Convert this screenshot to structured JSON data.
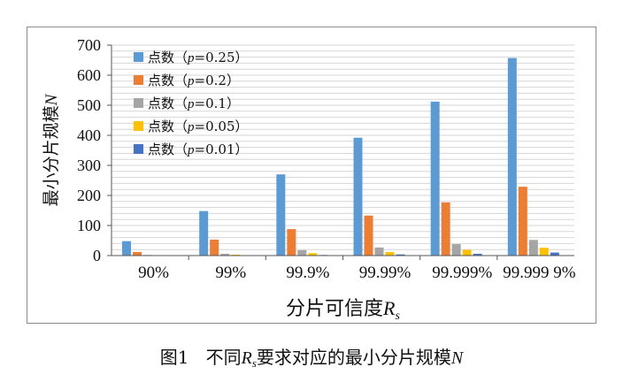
{
  "chart_data": {
    "type": "bar",
    "title": "",
    "xlabel": "分片可信度",
    "xlabel_var": "R",
    "xlabel_sub": "s",
    "ylabel": "最小分片规模",
    "ylabel_var": "N",
    "ylim": [
      0,
      700
    ],
    "yticks": [
      0,
      100,
      200,
      300,
      400,
      500,
      600,
      700
    ],
    "grid": true,
    "legend": "top-left",
    "categories": [
      "90%",
      "99%",
      "99.9%",
      "99.99%",
      "99.999%",
      "99.999 9%"
    ],
    "series": [
      {
        "name": "点数（p=0.25）",
        "prefix": "点数（",
        "var": "p",
        "suffix": "=0.25）",
        "color": "#5b9bd5",
        "values": [
          48,
          148,
          270,
          392,
          512,
          657
        ]
      },
      {
        "name": "点数（p=0.2）",
        "prefix": "点数（",
        "var": "p",
        "suffix": "=0.2）",
        "color": "#ed7d31",
        "values": [
          12,
          53,
          88,
          133,
          177,
          229
        ]
      },
      {
        "name": "点数（p=0.1）",
        "prefix": "点数（",
        "var": "p",
        "suffix": "=0.1）",
        "color": "#a5a5a5",
        "values": [
          2,
          6,
          18,
          27,
          38,
          52
        ]
      },
      {
        "name": "点数（p=0.05）",
        "prefix": "点数（",
        "var": "p",
        "suffix": "=0.05）",
        "color": "#ffc000",
        "values": [
          1,
          3,
          8,
          12,
          19,
          26
        ]
      },
      {
        "name": "点数（p=0.01）",
        "prefix": "点数（",
        "var": "p",
        "suffix": "=0.01）",
        "color": "#4472c4",
        "values": [
          0,
          1,
          2,
          4,
          6,
          10
        ]
      }
    ]
  },
  "caption": {
    "fig": "图1",
    "pre": "不同",
    "var": "R",
    "sub": "s",
    "post": "要求对应的最小分片规模",
    "tail": "N"
  }
}
